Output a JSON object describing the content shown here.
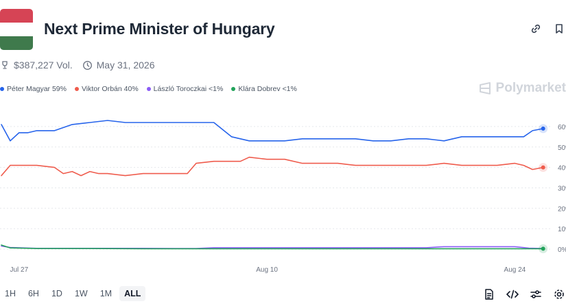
{
  "market": {
    "title": "Next Prime Minister of Hungary",
    "volume": "$387,227 Vol.",
    "end_date": "May 31, 2026",
    "flag_colors": [
      "#d64455",
      "#ffffff",
      "#3f7a4c"
    ]
  },
  "header_icons": [
    "link-icon",
    "bookmark-icon"
  ],
  "watermark": "Polymarket",
  "legend": [
    {
      "label": "Péter Magyar 59%",
      "color": "#2563eb"
    },
    {
      "label": "Viktor Orbán 40%",
      "color": "#ef5b4c"
    },
    {
      "label": "László Toroczkai <1%",
      "color": "#8b5cf6"
    },
    {
      "label": "Klára Dobrev <1%",
      "color": "#22a35a"
    }
  ],
  "time_ranges": [
    {
      "label": "1H",
      "active": false
    },
    {
      "label": "6H",
      "active": false
    },
    {
      "label": "1D",
      "active": false
    },
    {
      "label": "1W",
      "active": false
    },
    {
      "label": "1M",
      "active": false
    },
    {
      "label": "ALL",
      "active": true
    }
  ],
  "footer_icons": [
    "document-icon",
    "embed-code-icon",
    "sliders-icon",
    "settings-icon"
  ],
  "chart_data": {
    "type": "line",
    "x_tick_labels": [
      "Jul 27",
      "Aug 10",
      "Aug 24"
    ],
    "y_tick_labels": [
      "0%",
      "10%",
      "20%",
      "30%",
      "40%",
      "50%",
      "60%"
    ],
    "ylim": [
      0,
      65
    ],
    "x_range": [
      0,
      31
    ],
    "x_ticks": [
      1,
      15,
      29
    ],
    "grid": true,
    "legend_position": "top-left",
    "series": [
      {
        "name": "Péter Magyar",
        "color": "#2563eb",
        "x": [
          0,
          0.5,
          1,
          1.5,
          2,
          3,
          4,
          5,
          6,
          7,
          8,
          9,
          10,
          11,
          12,
          13,
          14,
          15,
          16,
          17,
          18,
          19,
          20,
          21,
          22,
          23,
          24,
          25,
          26,
          27,
          28,
          29,
          29.5,
          30,
          30.6
        ],
        "values": [
          61,
          53,
          57,
          57,
          58,
          58,
          61,
          62,
          63,
          62,
          62,
          62,
          62,
          62,
          62,
          55,
          53,
          53,
          53,
          54,
          54,
          54,
          54,
          53,
          53,
          54,
          54,
          53,
          55,
          55,
          55,
          55,
          55,
          58,
          59
        ]
      },
      {
        "name": "Viktor Orbán",
        "color": "#ef5b4c",
        "x": [
          0,
          0.5,
          1,
          2,
          3,
          3.5,
          4,
          4.5,
          5,
          5.5,
          6,
          7,
          8,
          9,
          10,
          10.5,
          11,
          12,
          13,
          13.5,
          14,
          15,
          16,
          17,
          18,
          19,
          20,
          21,
          22,
          23,
          24,
          25,
          26,
          27,
          28,
          29,
          29.5,
          30,
          30.6
        ],
        "values": [
          36,
          41,
          41,
          41,
          40,
          37,
          38,
          36,
          38,
          37,
          37,
          36,
          37,
          37,
          37,
          37,
          42,
          43,
          43,
          43,
          45,
          44,
          44,
          42,
          42,
          42,
          41,
          41,
          41,
          41,
          41,
          42,
          41,
          41,
          41,
          42,
          41,
          39,
          40
        ]
      },
      {
        "name": "László Toroczkai",
        "color": "#8b5cf6",
        "x": [
          0,
          0.5,
          2,
          5,
          8,
          10,
          11,
          12,
          15,
          20,
          24,
          25,
          26,
          29,
          29.8,
          30.6
        ],
        "values": [
          1.5,
          0.8,
          0.4,
          0.4,
          0.4,
          0.3,
          0.3,
          0.7,
          0.7,
          0.7,
          0.7,
          1.2,
          1.2,
          1.2,
          0.5,
          0.3
        ]
      },
      {
        "name": "Klára Dobrev",
        "color": "#22a35a",
        "x": [
          0,
          0.5,
          2,
          5,
          8,
          10,
          11,
          12,
          15,
          20,
          25,
          30,
          30.6
        ],
        "values": [
          2,
          0.6,
          0.3,
          0.3,
          0.2,
          0.2,
          0.2,
          0.2,
          0.2,
          0.2,
          0.2,
          0.2,
          0.2
        ]
      }
    ]
  }
}
